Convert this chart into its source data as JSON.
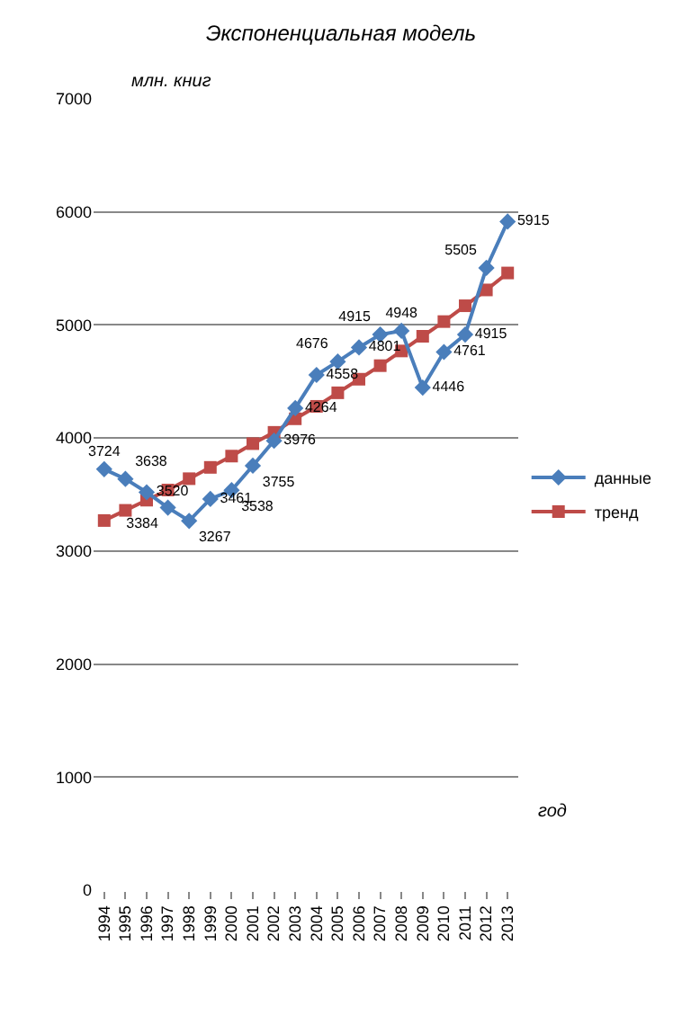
{
  "chart_data": {
    "type": "line",
    "title": "Экспоненциальная модель",
    "ylabel": "млн. книг",
    "xlabel": "год",
    "categories": [
      "1994",
      "1995",
      "1996",
      "1997",
      "1998",
      "1999",
      "2000",
      "2001",
      "2002",
      "2003",
      "2004",
      "2005",
      "2006",
      "2007",
      "2008",
      "2009",
      "2010",
      "2011",
      "2012",
      "2013"
    ],
    "series": [
      {
        "name": "данные",
        "color": "#4a7ebb",
        "marker": "diamond",
        "values": [
          3724,
          3638,
          3520,
          3384,
          3267,
          3461,
          3538,
          3755,
          3976,
          4264,
          4558,
          4676,
          4801,
          4915,
          4948,
          4446,
          4761,
          4915,
          5505,
          5915
        ],
        "value_labels": [
          "3724",
          "3638",
          "3520",
          "3384",
          "3267",
          "3461",
          "3538",
          "3755",
          "3976",
          "4264",
          "4558",
          "4676",
          "4801",
          "4915",
          "4948",
          "4446",
          "4761",
          "4915",
          "5505",
          "5915"
        ]
      },
      {
        "name": "тренд",
        "color": "#be4b48",
        "marker": "square",
        "values": [
          3270,
          3360,
          3450,
          3540,
          3640,
          3740,
          3840,
          3950,
          4050,
          4170,
          4280,
          4400,
          4520,
          4640,
          4770,
          4900,
          5030,
          5170,
          5310,
          5460
        ]
      }
    ],
    "ylim": [
      0,
      7000
    ],
    "yticks": [
      0,
      1000,
      2000,
      3000,
      4000,
      5000,
      6000,
      7000
    ],
    "grid": "y",
    "legend": "right"
  }
}
